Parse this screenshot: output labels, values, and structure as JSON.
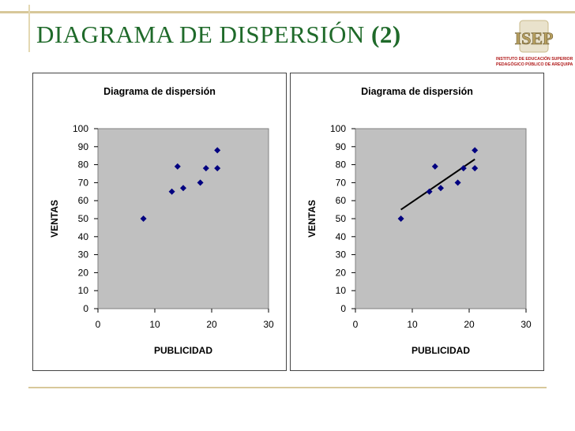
{
  "slide": {
    "title_main": "DIAGRAMA DE DISPERSIÓN",
    "title_num": "(2)",
    "logo": {
      "letters": "ISEP",
      "line1": "INSTITUTO DE EDUCACIÓN SUPERIOR",
      "line2": "PEDAGÓGICO PÚBLICO DE AREQUIPA"
    }
  },
  "colors": {
    "title": "#1f6a2a",
    "plot_bg": "#c0c0c0",
    "marker": "#000080",
    "trendline": "#000000",
    "rule": "#d8c89a"
  },
  "chart_data": [
    {
      "type": "scatter",
      "title": "Diagrama de dispersión",
      "xlabel": "PUBLICIDAD",
      "ylabel": "VENTAS",
      "xlim": [
        0,
        30
      ],
      "ylim": [
        0,
        100
      ],
      "xticks": [
        0,
        10,
        20,
        30
      ],
      "yticks": [
        0,
        10,
        20,
        30,
        40,
        50,
        60,
        70,
        80,
        90,
        100
      ],
      "points": [
        [
          8,
          50
        ],
        [
          13,
          65
        ],
        [
          14,
          79
        ],
        [
          15,
          67
        ],
        [
          18,
          70
        ],
        [
          19,
          78
        ],
        [
          21,
          88
        ],
        [
          21,
          78
        ]
      ],
      "trendline": null
    },
    {
      "type": "scatter",
      "title": "Diagrama de dispersión",
      "xlabel": "PUBLICIDAD",
      "ylabel": "VENTAS",
      "xlim": [
        0,
        30
      ],
      "ylim": [
        0,
        100
      ],
      "xticks": [
        0,
        10,
        20,
        30
      ],
      "yticks": [
        0,
        10,
        20,
        30,
        40,
        50,
        60,
        70,
        80,
        90,
        100
      ],
      "points": [
        [
          8,
          50
        ],
        [
          13,
          65
        ],
        [
          14,
          79
        ],
        [
          15,
          67
        ],
        [
          18,
          70
        ],
        [
          19,
          78
        ],
        [
          21,
          88
        ],
        [
          21,
          78
        ]
      ],
      "trendline": [
        [
          8,
          55
        ],
        [
          21,
          83
        ]
      ]
    }
  ]
}
